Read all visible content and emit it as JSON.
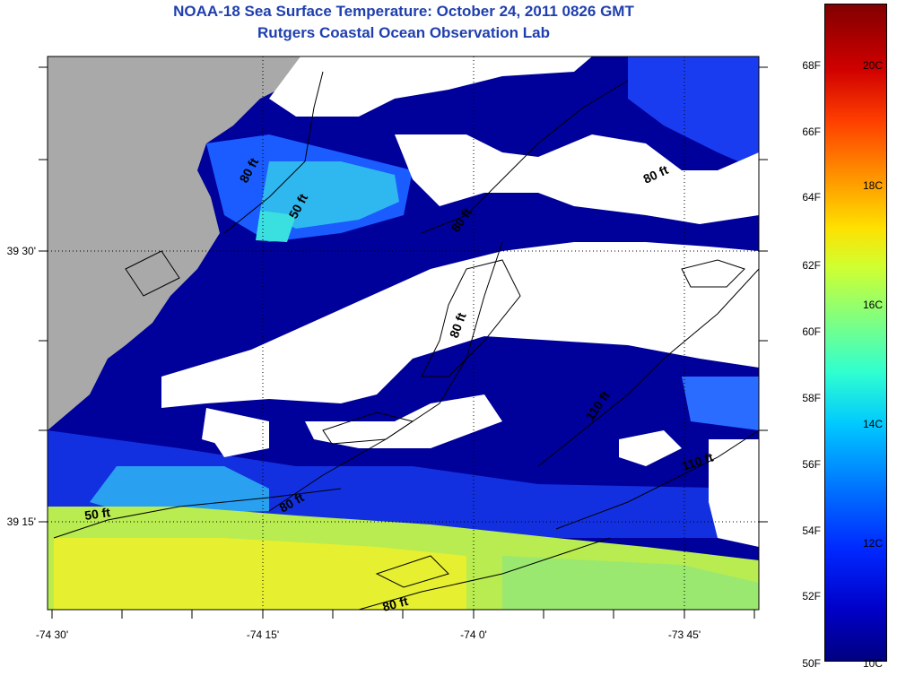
{
  "header": {
    "title": "NOAA-18 Sea Surface Temperature:  October 24, 2011 0826 GMT",
    "subtitle": "Rutgers Coastal Ocean Observation Lab"
  },
  "map": {
    "longitude_labels": [
      "-74 30'",
      "-74 15'",
      "-74 0'",
      "-73 45'"
    ],
    "latitude_labels": [
      "39 30'",
      "39 15'"
    ],
    "colors": {
      "land": "#a9a9a9",
      "cloud": "#ffffff",
      "water_cold": "#00008b",
      "water_mid": "#1e50ff",
      "water_cyan": "#30e0f0",
      "water_warm": "#d8f040"
    },
    "contour_labels": [
      "50 ft",
      "80 ft",
      "80 ft",
      "80 ft",
      "80 ft",
      "110 ft",
      "110 ft",
      "50 ft",
      "80 ft",
      "80 ft"
    ]
  },
  "colorbar": {
    "fahrenheit_ticks": [
      "68F",
      "66F",
      "64F",
      "62F",
      "60F",
      "58F",
      "56F",
      "54F",
      "52F",
      "50F"
    ],
    "celsius_ticks": [
      "20C",
      "18C",
      "16C",
      "14C",
      "12C",
      "10C"
    ],
    "range_f": [
      50,
      70
    ]
  }
}
